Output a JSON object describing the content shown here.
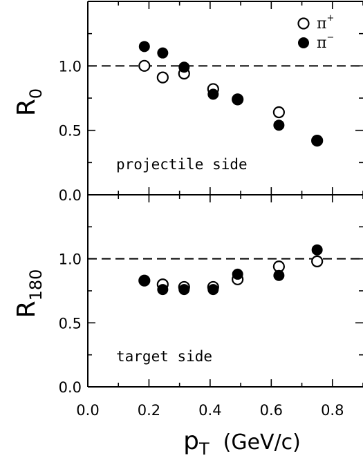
{
  "chart_data": [
    {
      "type": "scatter",
      "panel": "top",
      "ylabel": {
        "main": "R",
        "sub": "0"
      },
      "annotation": "projectile side",
      "xlim": [
        0.0,
        0.9
      ],
      "ylim": [
        0.0,
        1.5
      ],
      "yticks": [
        "0.0",
        "0.5",
        "1.0"
      ],
      "reference_line": 1.0,
      "series": [
        {
          "name": "π+",
          "marker": "open-circle",
          "x": [
            0.185,
            0.245,
            0.315,
            0.41,
            0.49,
            0.625,
            0.75
          ],
          "y": [
            1.0,
            0.91,
            0.94,
            0.82,
            0.74,
            0.64,
            0.42
          ]
        },
        {
          "name": "π−",
          "marker": "filled-circle",
          "x": [
            0.185,
            0.245,
            0.315,
            0.41,
            0.49,
            0.625,
            0.75
          ],
          "y": [
            1.15,
            1.1,
            0.99,
            0.78,
            0.74,
            0.54,
            0.42
          ]
        }
      ]
    },
    {
      "type": "scatter",
      "panel": "bottom",
      "ylabel": {
        "main": "R",
        "sub": "180"
      },
      "annotation": "target side",
      "xlim": [
        0.0,
        0.9
      ],
      "ylim": [
        0.0,
        1.5
      ],
      "yticks": [
        "0.0",
        "0.5",
        "1.0"
      ],
      "xticks": [
        "0.0",
        "0.2",
        "0.4",
        "0.6",
        "0.8"
      ],
      "xlabel": {
        "main": "p",
        "sub": "T",
        "unit": "(GeV/c)"
      },
      "reference_line": 1.0,
      "series": [
        {
          "name": "π+",
          "marker": "open-circle",
          "x": [
            0.185,
            0.245,
            0.315,
            0.41,
            0.49,
            0.625,
            0.75
          ],
          "y": [
            0.83,
            0.8,
            0.78,
            0.78,
            0.84,
            0.94,
            0.98
          ]
        },
        {
          "name": "π−",
          "marker": "filled-circle",
          "x": [
            0.185,
            0.245,
            0.315,
            0.41,
            0.49,
            0.625,
            0.75
          ],
          "y": [
            0.83,
            0.76,
            0.76,
            0.76,
            0.88,
            0.87,
            1.07
          ]
        }
      ]
    }
  ],
  "legend": [
    {
      "marker": "open-circle",
      "symbol": "π",
      "sup": "+"
    },
    {
      "marker": "filled-circle",
      "symbol": "π",
      "sup": "−"
    }
  ]
}
